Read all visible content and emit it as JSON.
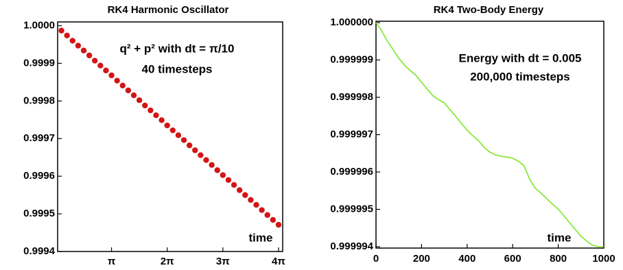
{
  "chart_data": [
    {
      "type": "scatter",
      "title": "RK4 Harmonic Oscillator",
      "annotations": [
        "q² + p² with dt = π/10",
        "40 timesteps",
        "time"
      ],
      "color": "#d41414",
      "x": [
        0.3142,
        0.6283,
        0.9425,
        1.2566,
        1.5708,
        1.885,
        2.1991,
        2.5133,
        2.8274,
        3.1416,
        3.4558,
        3.7699,
        4.0841,
        4.3982,
        4.7124,
        5.0265,
        5.3407,
        5.6549,
        5.969,
        6.2832,
        6.5973,
        6.9115,
        7.2257,
        7.5398,
        7.854,
        8.1681,
        8.4823,
        8.7965,
        9.1106,
        9.4248,
        9.7389,
        10.0531,
        10.3673,
        10.6814,
        10.9956,
        11.3097,
        11.6239,
        11.9381,
        12.2522,
        12.5664
      ],
      "values": [
        0.999987,
        0.999974,
        0.99996,
        0.999947,
        0.999934,
        0.999921,
        0.999907,
        0.999894,
        0.999881,
        0.999868,
        0.999854,
        0.999841,
        0.999828,
        0.999815,
        0.999802,
        0.999788,
        0.999775,
        0.999762,
        0.999749,
        0.999735,
        0.999722,
        0.999709,
        0.999696,
        0.999682,
        0.999669,
        0.999656,
        0.999643,
        0.99963,
        0.999616,
        0.999603,
        0.99959,
        0.999577,
        0.999563,
        0.99955,
        0.999537,
        0.999524,
        0.99951,
        0.999497,
        0.999484,
        0.999471
      ],
      "xlim": [
        0.1,
        12.8
      ],
      "xticks": [
        {
          "value": 3.1416,
          "label": "π"
        },
        {
          "value": 6.2832,
          "label": "2π"
        },
        {
          "value": 9.4248,
          "label": "3π"
        },
        {
          "value": 12.5664,
          "label": "4π"
        }
      ],
      "ylim": [
        0.9994,
        1.00001
      ],
      "yticks": [
        {
          "value": 1.0,
          "label": "1.0000"
        },
        0.9999,
        0.9998,
        0.9997,
        0.9996,
        0.9995,
        0.9994
      ]
    },
    {
      "type": "line",
      "title": "RK4 Two-Body Energy",
      "annotations": [
        "Energy with dt = 0.005",
        "200,000 timesteps",
        "time"
      ],
      "color": "#8ae83a",
      "x": [
        0,
        25,
        50,
        75,
        100,
        125,
        150,
        175,
        200,
        225,
        250,
        275,
        300,
        325,
        350,
        375,
        400,
        425,
        450,
        475,
        500,
        525,
        550,
        575,
        600,
        625,
        650,
        675,
        700,
        725,
        750,
        775,
        800,
        825,
        850,
        875,
        900,
        925,
        950,
        975,
        1000
      ],
      "values": [
        1.0,
        0.99999978,
        0.9999995,
        0.99999928,
        0.99999905,
        0.99999886,
        0.99999872,
        0.99999859,
        0.9999984,
        0.99999822,
        0.99999804,
        0.99999794,
        0.99999785,
        0.99999767,
        0.99999749,
        0.9999973,
        0.99999712,
        0.99999697,
        0.99999684,
        0.99999666,
        0.99999653,
        0.99999646,
        0.99999642,
        0.9999964,
        0.99999637,
        0.99999629,
        0.99999617,
        0.9999958,
        0.99999556,
        0.99999543,
        0.99999528,
        0.99999514,
        0.99999501,
        0.99999483,
        0.99999464,
        0.99999446,
        0.99999428,
        0.99999415,
        0.99999404,
        0.999994,
        0.999994
      ],
      "xlim": [
        0,
        1000
      ],
      "xticks": [
        0,
        200,
        400,
        600,
        800,
        1000
      ],
      "ylim": [
        0.999994,
        1.0
      ],
      "yticks": [
        {
          "value": 1.0,
          "label": "1.000000"
        },
        0.999999,
        0.999998,
        0.999997,
        0.999996,
        0.999995,
        0.999994
      ]
    }
  ]
}
